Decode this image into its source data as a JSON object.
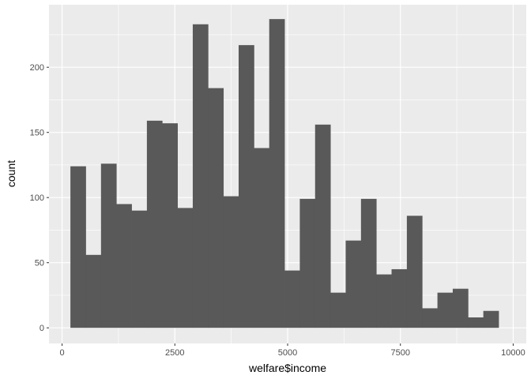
{
  "chart_data": {
    "type": "bar",
    "subtype": "histogram",
    "title": "",
    "xlabel": "welfare$income",
    "ylabel": "count",
    "xlim": [
      -290,
      10290
    ],
    "ylim": [
      -12,
      248
    ],
    "x_ticks": [
      0,
      2500,
      5000,
      7500,
      10000
    ],
    "x_tick_labels": [
      "0",
      "2500",
      "5000",
      "7500",
      "10000"
    ],
    "y_ticks": [
      0,
      50,
      100,
      150,
      200
    ],
    "y_tick_labels": [
      "0",
      "50",
      "100",
      "150",
      "200"
    ],
    "grid": true,
    "bin_width": 339,
    "bins_start": [
      185,
      524,
      863,
      1202,
      1541,
      1880,
      2219,
      2558,
      2897,
      3236,
      3575,
      3914,
      4253,
      4592,
      4931,
      5270,
      5609,
      5948,
      6287,
      6626,
      6965,
      7304,
      7643,
      7982,
      8321,
      8660,
      8999,
      9338
    ],
    "values": [
      124,
      56,
      126,
      95,
      90,
      159,
      157,
      92,
      233,
      184,
      101,
      217,
      138,
      237,
      44,
      99,
      156,
      27,
      67,
      99,
      41,
      45,
      86,
      15,
      27,
      30,
      8,
      13
    ],
    "bar_color": "#595959",
    "panel_background": "#ebebeb",
    "grid_color": "#ffffff"
  }
}
